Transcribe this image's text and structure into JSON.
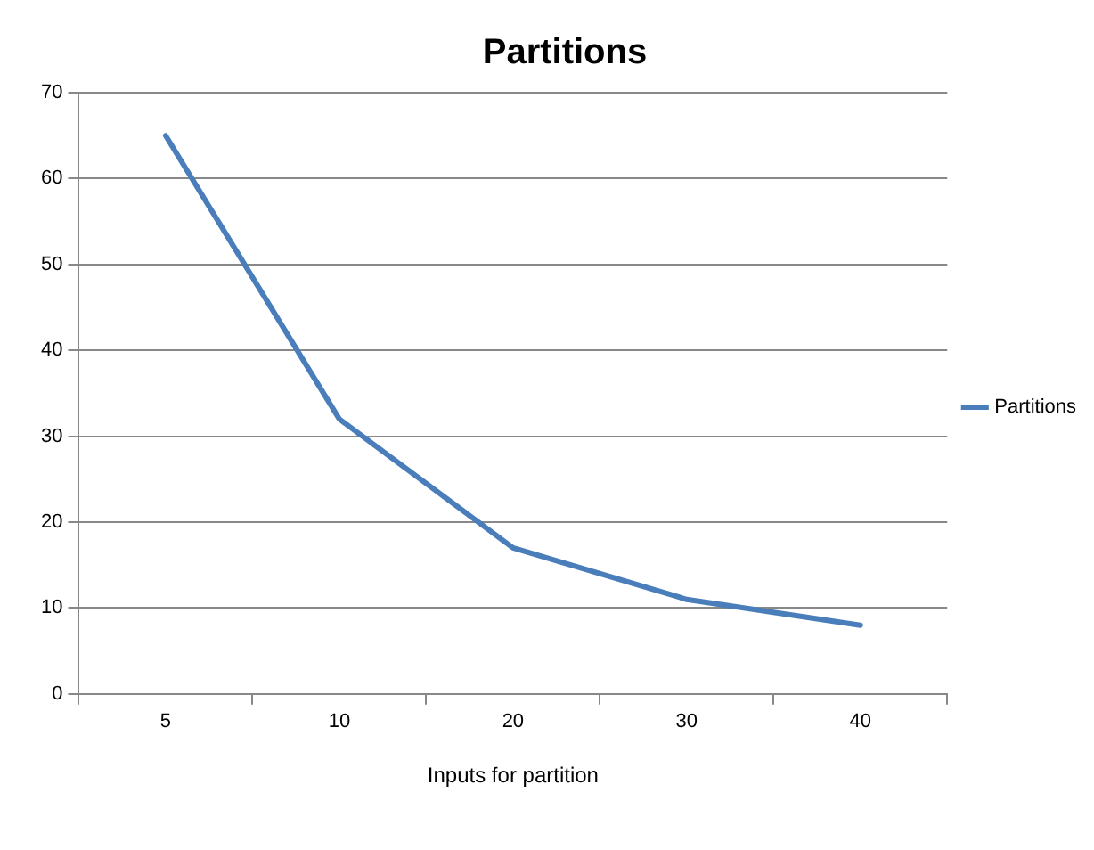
{
  "chart_data": {
    "type": "line",
    "title": "Partitions",
    "xlabel": "Inputs for partition",
    "categories": [
      "5",
      "10",
      "20",
      "30",
      "40"
    ],
    "series": [
      {
        "name": "Partitions",
        "color": "#4a7ebb",
        "values": [
          65,
          32,
          17,
          11,
          8
        ]
      }
    ],
    "ylim": [
      0,
      70
    ],
    "yticks": [
      0,
      10,
      20,
      30,
      40,
      50,
      60,
      70
    ],
    "grid": "y",
    "legend": "right",
    "marker": "none",
    "line_style": "solid"
  }
}
